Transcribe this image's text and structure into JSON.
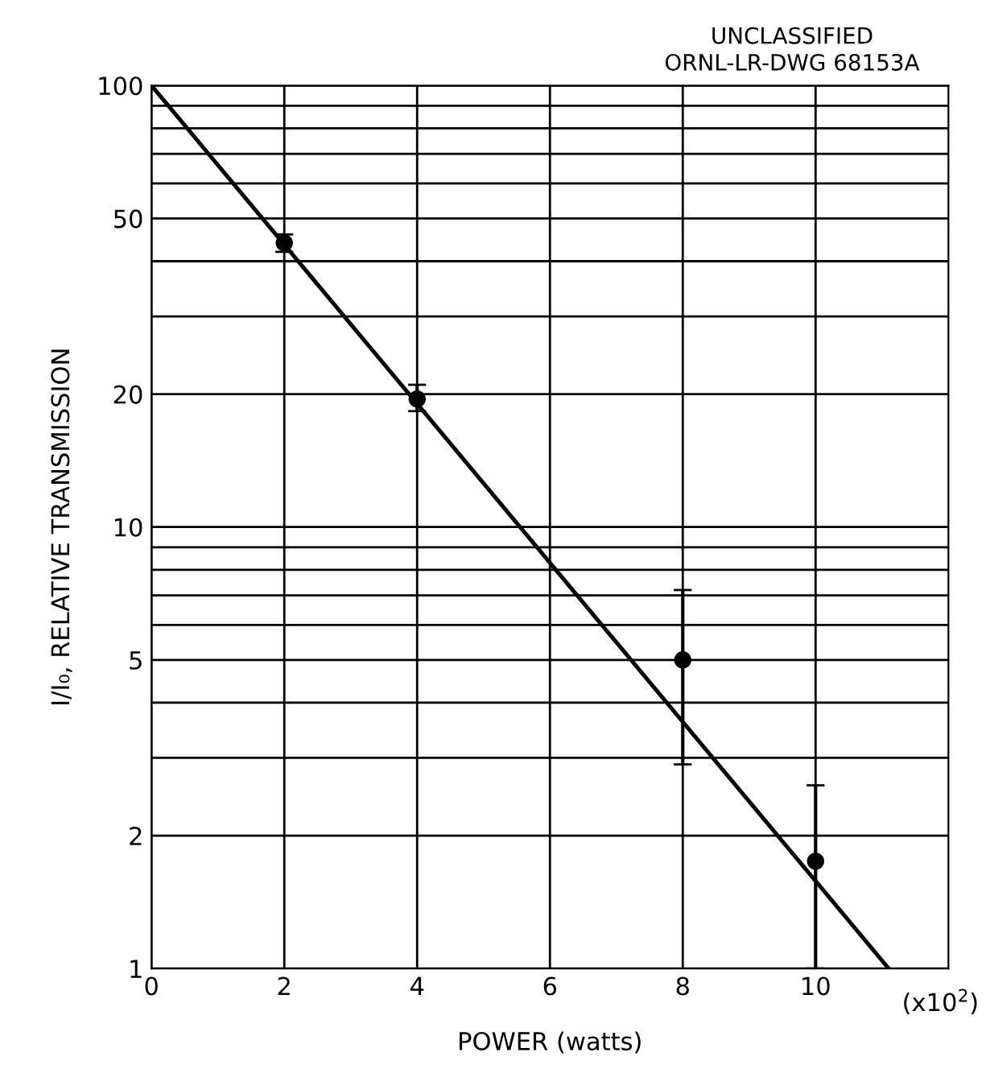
{
  "chart_data": {
    "type": "scatter",
    "xlabel": "POWER (watts)",
    "ylabel": "I/I₀, RELATIVE TRANSMISSION",
    "annotations": [
      "UNCLASSIFIED",
      "ORNL-LR-DWG 68153A",
      "(x10$^{2}$)"
    ],
    "log": "y",
    "xlim": [
      0,
      12
    ],
    "ylim": [
      1,
      100
    ],
    "xticks": [
      0,
      2,
      4,
      6,
      8,
      10
    ],
    "yticks": [
      1,
      2,
      {
        "value": 3,
        "label": null
      },
      {
        "value": 4,
        "label": null
      },
      5,
      {
        "value": 6,
        "label": null
      },
      {
        "value": 7,
        "label": null
      },
      {
        "value": 8,
        "label": null
      },
      {
        "value": 9,
        "label": null
      },
      10,
      20,
      {
        "value": 30,
        "label": null
      },
      {
        "value": 40,
        "label": null
      },
      50,
      {
        "value": 60,
        "label": null
      },
      {
        "value": 70,
        "label": null
      },
      {
        "value": 80,
        "label": null
      },
      {
        "value": 90,
        "label": null
      },
      100
    ],
    "grid": true,
    "series": [
      {
        "color": "#000000",
        "marker": "circle",
        "x": [
          2,
          4,
          8,
          10
        ],
        "values": [
          44,
          19.5,
          5.0,
          1.75
        ],
        "errors": [
          [
            42,
            46
          ],
          [
            18.3,
            21
          ],
          [
            2.9,
            7.2
          ],
          [
            1.0,
            2.6
          ]
        ]
      },
      {
        "type": "line",
        "color": "#000000",
        "x": [
          0,
          11.1
        ],
        "values": [
          100,
          1
        ],
        "marker": "none",
        "line_style": "solid"
      }
    ]
  }
}
